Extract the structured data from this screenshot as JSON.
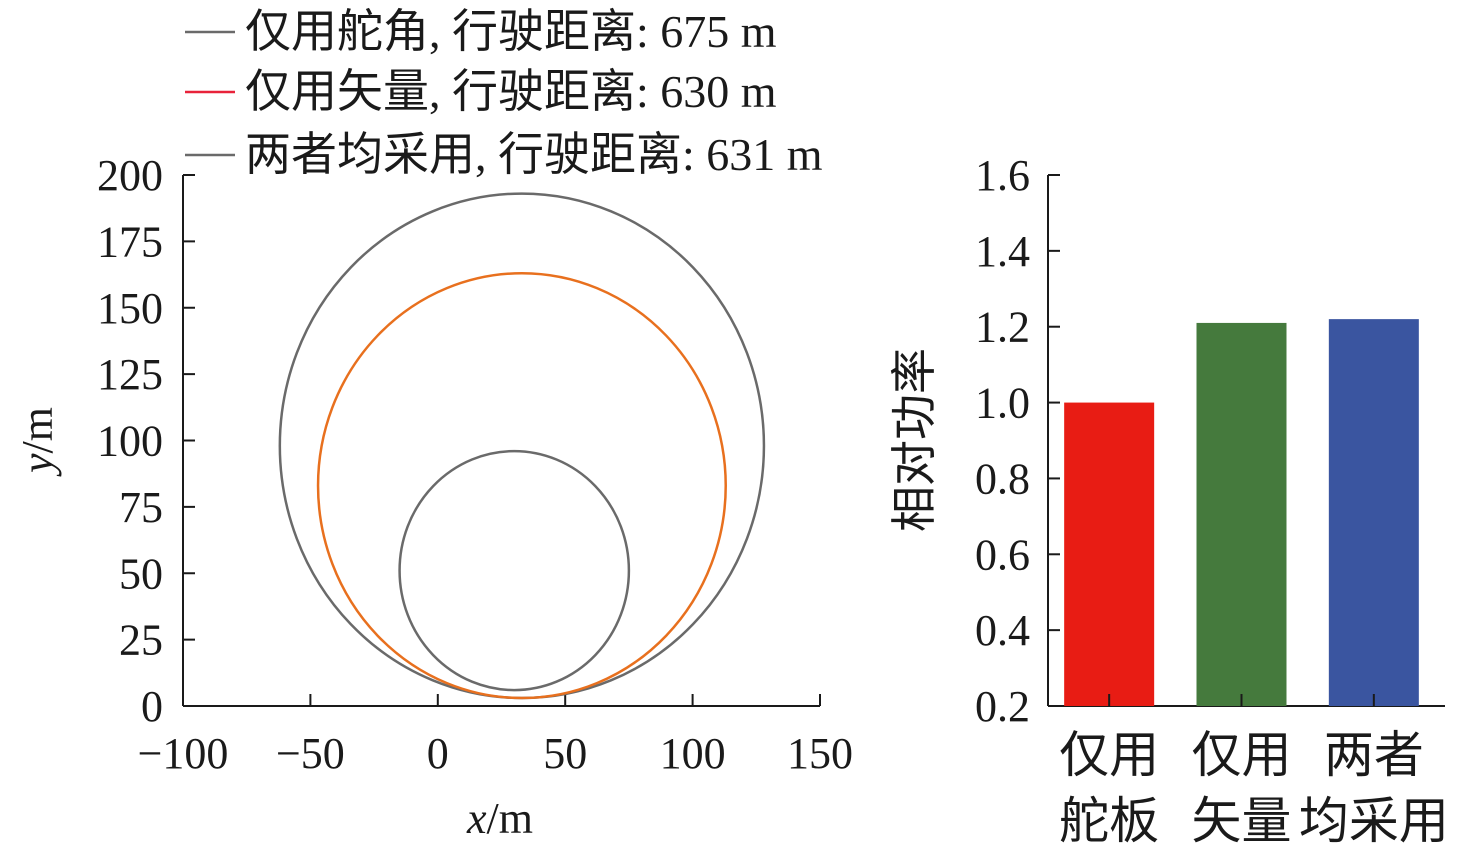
{
  "chart_data": [
    {
      "type": "line",
      "xlabel_var": "x",
      "xlabel_unit": "/m",
      "ylabel_var": "y",
      "ylabel_unit": "/m",
      "xlim": [
        -100,
        150
      ],
      "ylim": [
        0,
        200
      ],
      "x_ticks": [
        "−100",
        "−50",
        "0",
        "50",
        "100",
        "150"
      ],
      "x_tick_values": [
        -100,
        -50,
        0,
        50,
        100,
        150
      ],
      "y_ticks": [
        "0",
        "25",
        "50",
        "75",
        "100",
        "125",
        "150",
        "175",
        "200"
      ],
      "y_tick_values": [
        0,
        25,
        50,
        75,
        100,
        125,
        150,
        175,
        200
      ],
      "legend": [
        "仅用舵角, 行驶距离: 675 m",
        "仅用矢量, 行驶距离: 630 m",
        "两者均采用, 行驶距离: 631 m"
      ],
      "series": [
        {
          "name": "仅用舵角, 行驶距离: 675 m",
          "color": "#6a6a6a",
          "shape": "circle",
          "center": [
            33,
            98
          ],
          "radius": 95
        },
        {
          "name": "仅用矢量, 行驶距离: 630 m",
          "color": "#e8701e",
          "shape": "circle",
          "center": [
            33,
            83
          ],
          "radius": 80
        },
        {
          "name": "两者均采用, 行驶距离: 631 m",
          "color": "#6a6a6a",
          "shape": "circle",
          "center": [
            30,
            51
          ],
          "radius": 45
        }
      ]
    },
    {
      "type": "bar",
      "ylabel": "相对功率",
      "ylim": [
        0.2,
        1.6
      ],
      "y_ticks": [
        "0.2",
        "0.4",
        "0.6",
        "0.8",
        "1.0",
        "1.2",
        "1.4",
        "1.6"
      ],
      "y_tick_values": [
        0.2,
        0.4,
        0.6,
        0.8,
        1.0,
        1.2,
        1.4,
        1.6
      ],
      "categories": [
        {
          "line1": "仅用",
          "line2": "舵板"
        },
        {
          "line1": "仅用",
          "line2": "矢量"
        },
        {
          "line1": "两者",
          "line2": "均采用"
        }
      ],
      "values": [
        1.0,
        1.21,
        1.22
      ],
      "colors": [
        "#e81c14",
        "#457a3d",
        "#3a55a0"
      ]
    }
  ]
}
